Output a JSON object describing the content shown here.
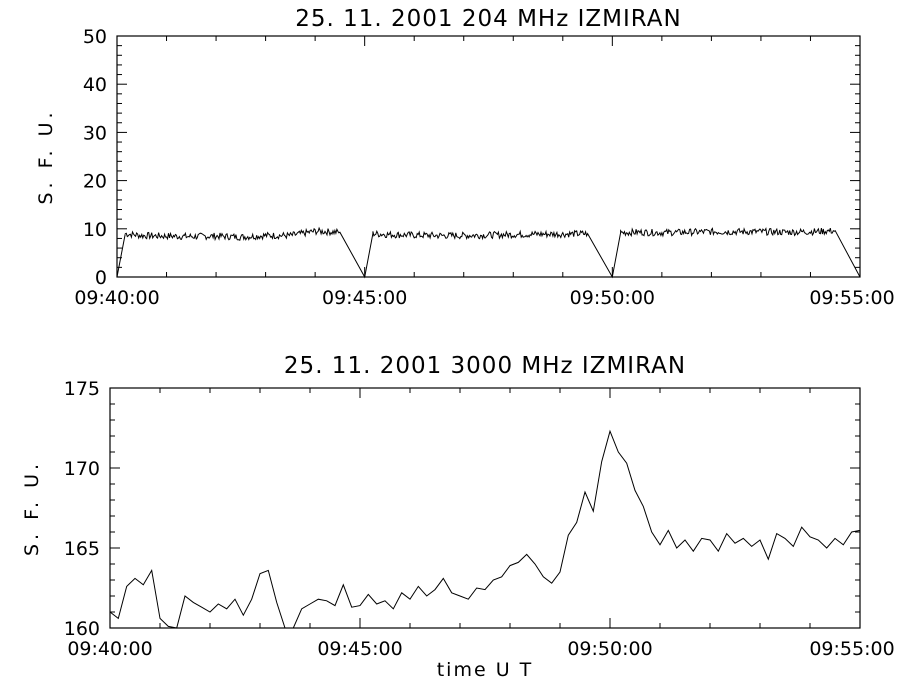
{
  "chart_data": [
    {
      "type": "line",
      "title": "25.  11.  2001    204 MHz    IZMIRAN",
      "ylabel": "S. F. U.",
      "xlabel": "",
      "xlim": [
        "09:40:00",
        "09:55:00"
      ],
      "ylim": [
        0,
        50
      ],
      "yticks": [
        0,
        10,
        20,
        30,
        40,
        50
      ],
      "ytick_labels": [
        "0",
        "10",
        "20",
        "30",
        "40",
        "50"
      ],
      "xtick_labels": [
        "09:40:00",
        "09:45:00",
        "09:50:00",
        "09:55:00"
      ],
      "grid": false,
      "series": [
        {
          "values_note_free": true,
          "x": [
            "09:40:00",
            "09:40:10",
            "09:40:20",
            "09:40:30",
            "09:41:00",
            "09:41:30",
            "09:42:00",
            "09:42:30",
            "09:43:00",
            "09:43:30",
            "09:44:00",
            "09:44:30",
            "09:45:00",
            "09:45:10",
            "09:45:30",
            "09:46:00",
            "09:46:30",
            "09:47:00",
            "09:47:30",
            "09:48:00",
            "09:48:30",
            "09:49:00",
            "09:49:30",
            "09:50:00",
            "09:50:10",
            "09:50:30",
            "09:51:00",
            "09:51:30",
            "09:52:00",
            "09:52:30",
            "09:53:00",
            "09:53:30",
            "09:54:00",
            "09:54:30",
            "09:55:00"
          ],
          "values": [
            0,
            9,
            8.8,
            8.6,
            8.5,
            8.4,
            8.5,
            8.3,
            8.6,
            8.6,
            9.5,
            9.3,
            0,
            9,
            8.8,
            8.7,
            8.6,
            8.6,
            8.7,
            8.8,
            8.9,
            8.9,
            9,
            0,
            9.2,
            9.3,
            9.2,
            9.3,
            9.4,
            9.4,
            9.4,
            9.3,
            9.4,
            9.6,
            0
          ]
        }
      ]
    },
    {
      "type": "line",
      "title": "25.  11.  2001    3000 MHz    IZMIRAN",
      "ylabel": "S. F. U.",
      "xlabel": "time   U T",
      "xlim": [
        "09:40:00",
        "09:55:00"
      ],
      "ylim": [
        160,
        175
      ],
      "yticks": [
        160,
        165,
        170,
        175
      ],
      "ytick_labels": [
        "160",
        "165",
        "170",
        "175"
      ],
      "xtick_labels": [
        "09:40:00",
        "09:45:00",
        "09:50:00",
        "09:55:00"
      ],
      "grid": false,
      "series": [
        {
          "x": [
            "09:40:00",
            "09:40:10",
            "09:40:20",
            "09:40:30",
            "09:40:40",
            "09:40:50",
            "09:41:00",
            "09:41:10",
            "09:41:20",
            "09:41:30",
            "09:41:40",
            "09:41:50",
            "09:42:00",
            "09:42:10",
            "09:42:20",
            "09:42:30",
            "09:42:40",
            "09:42:50",
            "09:43:00",
            "09:43:10",
            "09:43:20",
            "09:43:30",
            "09:43:40",
            "09:43:50",
            "09:44:00",
            "09:44:10",
            "09:44:20",
            "09:44:30",
            "09:44:40",
            "09:44:50",
            "09:45:00",
            "09:45:10",
            "09:45:20",
            "09:45:30",
            "09:45:40",
            "09:45:50",
            "09:46:00",
            "09:46:10",
            "09:46:20",
            "09:46:30",
            "09:46:40",
            "09:46:50",
            "09:47:00",
            "09:47:10",
            "09:47:20",
            "09:47:30",
            "09:47:40",
            "09:47:50",
            "09:48:00",
            "09:48:10",
            "09:48:20",
            "09:48:30",
            "09:48:40",
            "09:48:50",
            "09:49:00",
            "09:49:10",
            "09:49:20",
            "09:49:30",
            "09:49:40",
            "09:49:50",
            "09:50:00",
            "09:50:10",
            "09:50:20",
            "09:50:30",
            "09:50:40",
            "09:50:50",
            "09:51:00",
            "09:51:10",
            "09:51:20",
            "09:51:30",
            "09:51:40",
            "09:51:50",
            "09:52:00",
            "09:52:10",
            "09:52:20",
            "09:52:30",
            "09:52:40",
            "09:52:50",
            "09:53:00",
            "09:53:10",
            "09:53:20",
            "09:53:30",
            "09:53:40",
            "09:53:50",
            "09:54:00",
            "09:54:10",
            "09:54:20",
            "09:54:30",
            "09:54:40",
            "09:54:50",
            "09:55:00"
          ],
          "values": [
            161,
            160.6,
            162.6,
            163.1,
            162.7,
            163.6,
            160.6,
            160.1,
            159.9,
            162.0,
            161.6,
            161.3,
            161.0,
            161.5,
            161.2,
            161.8,
            160.8,
            161.8,
            163.4,
            163.6,
            161.6,
            159.5,
            159.7,
            161.2,
            161.5,
            161.8,
            161.7,
            161.4,
            162.7,
            161.3,
            161.4,
            162.1,
            161.5,
            161.7,
            161.2,
            162.2,
            161.8,
            162.6,
            162.0,
            162.4,
            163.1,
            162.2,
            162.0,
            161.8,
            162.5,
            162.4,
            163.0,
            163.2,
            163.9,
            164.1,
            164.6,
            164.0,
            163.2,
            162.8,
            163.5,
            165.8,
            166.6,
            168.5,
            167.3,
            170.4,
            172.3,
            171.0,
            170.3,
            168.6,
            167.6,
            166.0,
            165.2,
            166.1,
            165.0,
            165.5,
            164.8,
            165.6,
            165.5,
            164.8,
            165.9,
            165.3,
            165.6,
            165.1,
            165.5,
            164.3,
            165.9,
            165.6,
            165.1,
            166.3,
            165.7,
            165.5,
            165.0,
            165.6,
            165.2,
            166.0,
            166.1
          ]
        }
      ]
    }
  ]
}
